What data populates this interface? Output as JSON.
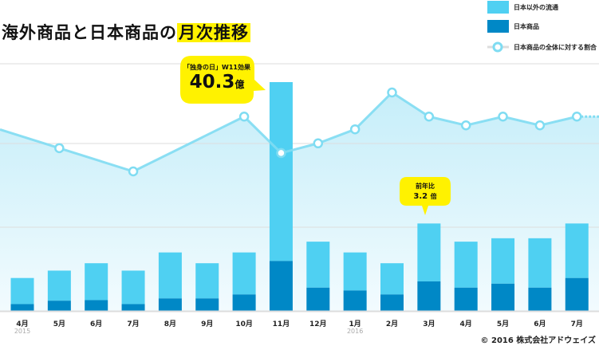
{
  "title": {
    "main": "海外商品と日本商品の",
    "highlight": "月次推移"
  },
  "legend": [
    {
      "label": "日本以外の流通",
      "color": "#4fd0f2"
    },
    {
      "label": "日本商品",
      "color": "#0088c6"
    },
    {
      "label": "日本商品の全体に対する割合",
      "color": "#7fdcf2"
    }
  ],
  "callouts": {
    "november": {
      "caption": "「独身の日」W11効果",
      "value": "40.3",
      "unit": "億"
    },
    "march": {
      "line1": "前年比",
      "line2": "3.2",
      "unit": "倍"
    }
  },
  "chart_data": {
    "type": "bar",
    "stacked": true,
    "categories": [
      "4月",
      "5月",
      "6月",
      "7月",
      "8月",
      "9月",
      "10月",
      "11月",
      "12月",
      "1月",
      "2月",
      "3月",
      "4月",
      "5月",
      "6月",
      "7月"
    ],
    "year_labels": {
      "0": "2015",
      "9": "2016"
    },
    "series": [
      {
        "name": "日本商品",
        "values": [
          1.2,
          1.8,
          1.9,
          1.2,
          2.2,
          2.2,
          2.9,
          8.8,
          4.1,
          3.6,
          2.9,
          5.2,
          4.1,
          4.8,
          4.1,
          5.8
        ]
      },
      {
        "name": "日本以外の流通",
        "values": [
          4.6,
          5.3,
          6.5,
          5.9,
          8.1,
          6.2,
          7.4,
          31.5,
          8.1,
          6.7,
          5.5,
          10.2,
          8.1,
          8.0,
          8.7,
          9.6
        ]
      }
    ],
    "line_series": {
      "name": "日本商品の全体に対する割合",
      "unit": "%",
      "values": [
        null,
        22.3,
        null,
        17.0,
        null,
        null,
        29.5,
        21.2,
        23.4,
        26.6,
        35.0,
        29.5,
        27.5,
        29.5,
        27.5,
        29.5
      ]
    },
    "ylim": [
      0,
      55
    ],
    "grid": true,
    "legend_position": "top-right"
  },
  "copyright": "© 2016 株式会社アドウェイズ"
}
